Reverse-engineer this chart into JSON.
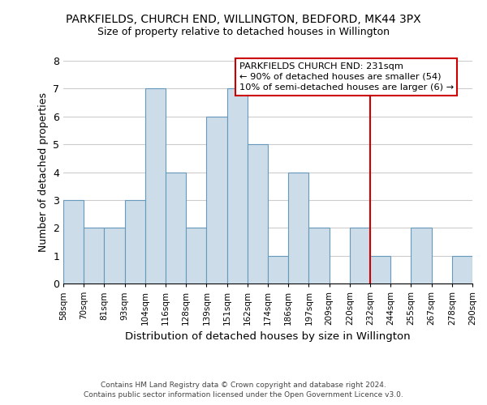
{
  "title": "PARKFIELDS, CHURCH END, WILLINGTON, BEDFORD, MK44 3PX",
  "subtitle": "Size of property relative to detached houses in Willington",
  "xlabel": "Distribution of detached houses by size in Willington",
  "ylabel": "Number of detached properties",
  "bin_labels": [
    "58sqm",
    "70sqm",
    "81sqm",
    "93sqm",
    "104sqm",
    "116sqm",
    "128sqm",
    "139sqm",
    "151sqm",
    "162sqm",
    "174sqm",
    "186sqm",
    "197sqm",
    "209sqm",
    "220sqm",
    "232sqm",
    "244sqm",
    "255sqm",
    "267sqm",
    "278sqm",
    "290sqm"
  ],
  "bar_heights": [
    3,
    2,
    2,
    3,
    7,
    4,
    2,
    6,
    7,
    5,
    1,
    4,
    2,
    0,
    2,
    1,
    0,
    2,
    0,
    1
  ],
  "bar_color": "#ccdce8",
  "bar_edge_color": "#6699bb",
  "vline_x": 15,
  "vline_color": "#cc0000",
  "ylim": [
    0,
    8
  ],
  "yticks": [
    0,
    1,
    2,
    3,
    4,
    5,
    6,
    7,
    8
  ],
  "annotation_title": "PARKFIELDS CHURCH END: 231sqm",
  "annotation_line1": "← 90% of detached houses are smaller (54)",
  "annotation_line2": "10% of semi-detached houses are larger (6) →",
  "annotation_box_color": "#ffffff",
  "annotation_box_edge": "#cc0000",
  "footer_line1": "Contains HM Land Registry data © Crown copyright and database right 2024.",
  "footer_line2": "Contains public sector information licensed under the Open Government Licence v3.0.",
  "background_color": "#ffffff",
  "grid_color": "#cccccc"
}
